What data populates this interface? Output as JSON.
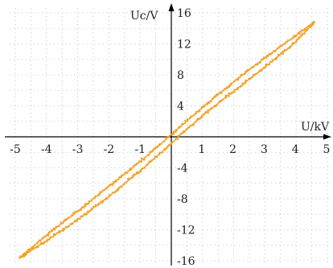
{
  "chart_data": {
    "type": "scatter",
    "title": "",
    "xlabel": "U/kV",
    "ylabel": "Uc/V",
    "xlim": [
      -5,
      5
    ],
    "ylim": [
      -16,
      16
    ],
    "x_ticks": [
      -5,
      -4,
      -3,
      -2,
      -1,
      1,
      2,
      3,
      4,
      5
    ],
    "y_ticks": [
      -16,
      -12,
      -8,
      -4,
      4,
      8,
      12,
      16
    ],
    "x_tick_labels": [
      "-5",
      "-4",
      "-3",
      "-2",
      "-1",
      "1",
      "2",
      "3",
      "4",
      "5"
    ],
    "y_tick_labels": [
      "-16",
      "-12",
      "-8",
      "-4",
      "4",
      "8",
      "12",
      "16"
    ],
    "grid": true,
    "legend": "none",
    "series": [
      {
        "color": "#f0a020",
        "branch": "upper",
        "points": [
          [
            -4.85,
            -15.6
          ],
          [
            -4,
            -12.7
          ],
          [
            -3,
            -9.6
          ],
          [
            -2,
            -6.4
          ],
          [
            -1,
            -3.2
          ],
          [
            -0.3,
            -0.8
          ],
          [
            0,
            0.3
          ],
          [
            1,
            3.8
          ],
          [
            2,
            7.1
          ],
          [
            3,
            10.2
          ],
          [
            4,
            13.1
          ],
          [
            4.6,
            14.9
          ]
        ]
      },
      {
        "color": "#f0a020",
        "branch": "lower",
        "points": [
          [
            -4.85,
            -15.6
          ],
          [
            -4,
            -13.4
          ],
          [
            -3,
            -10.7
          ],
          [
            -2,
            -7.7
          ],
          [
            -1,
            -4.4
          ],
          [
            0,
            -0.9
          ],
          [
            0.3,
            0.3
          ],
          [
            1,
            2.7
          ],
          [
            2,
            5.9
          ],
          [
            3,
            9.0
          ],
          [
            4,
            12.3
          ],
          [
            4.6,
            14.9
          ]
        ]
      }
    ]
  }
}
